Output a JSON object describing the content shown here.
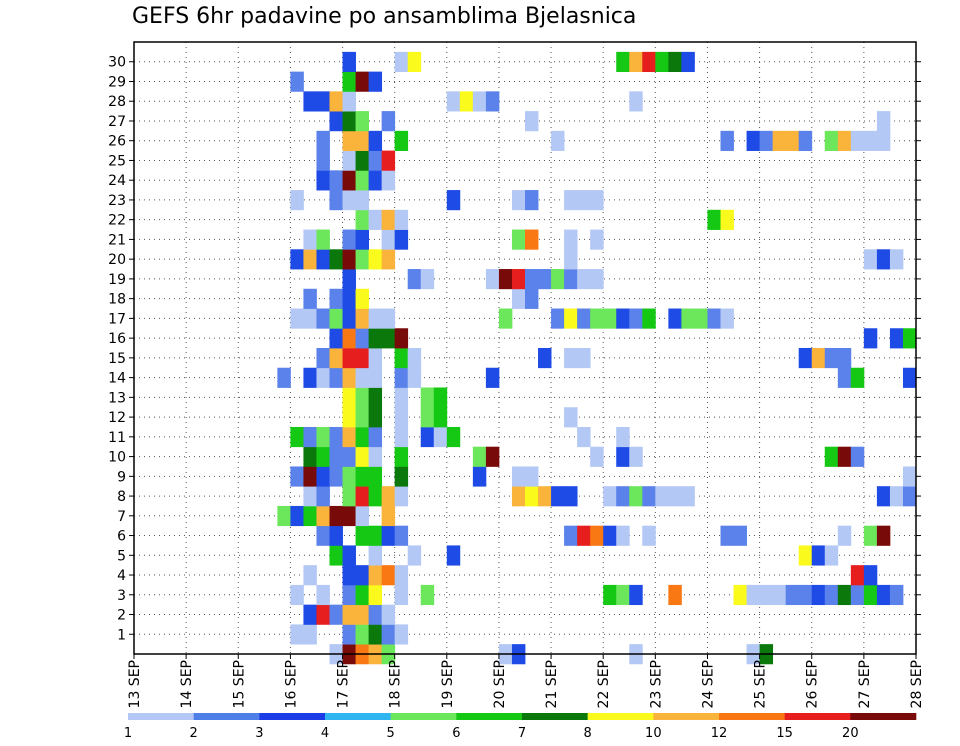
{
  "chart_data": {
    "type": "heatmap",
    "title": "GEFS 6hr padavine po ansamblima Bjelasnica",
    "xlabel": "",
    "ylabel": "",
    "x_ticks": [
      "13 SEP",
      "14 SEP",
      "15 SEP",
      "16 SEP",
      "17 SEP",
      "18 SEP",
      "19 SEP",
      "20 SEP",
      "21 SEP",
      "22 SEP",
      "23 SEP",
      "24 SEP",
      "25 SEP",
      "26 SEP",
      "27 SEP",
      "28 SEP"
    ],
    "y_ticks": [
      "1",
      "2",
      "3",
      "4",
      "5",
      "6",
      "7",
      "8",
      "9",
      "10",
      "11",
      "12",
      "13",
      "14",
      "15",
      "16",
      "17",
      "18",
      "19",
      "20",
      "21",
      "22",
      "23",
      "24",
      "25",
      "26",
      "27",
      "28",
      "29",
      "30"
    ],
    "time_steps_per_day": 4,
    "num_time_steps": 60,
    "members": 30,
    "grid": true,
    "colorbar": {
      "labels": [
        "1",
        "2",
        "3",
        "4",
        "5",
        "6",
        "7",
        "8",
        "10",
        "12",
        "15",
        "20"
      ],
      "colors": [
        "#b4c8f5",
        "#4e7ee8",
        "#1c3ce6",
        "#2fb6f2",
        "#6ce65a",
        "#14c814",
        "#0b780b",
        "#fafa1c",
        "#fab43c",
        "#fa7814",
        "#e61e1e",
        "#780a0a"
      ]
    },
    "colors": {
      "1": "#b4c8f5",
      "2": "#5a82ea",
      "3": "#1e4ae6",
      "5": "#6ce65a",
      "6": "#14c814",
      "7": "#0b780b",
      "8": "#fafa1c",
      "10": "#fab43c",
      "12": "#fa7814",
      "15": "#e61e1e",
      "20": "#780a0a"
    },
    "cells": {
      "30": [
        [
          16,
          3
        ],
        [
          20,
          1
        ],
        [
          21,
          8
        ],
        [
          37,
          6
        ],
        [
          38,
          10
        ],
        [
          39,
          15
        ],
        [
          40,
          6
        ],
        [
          41,
          7
        ],
        [
          42,
          3
        ]
      ],
      "29": [
        [
          12,
          2
        ],
        [
          16,
          6
        ],
        [
          17,
          20
        ],
        [
          18,
          3
        ]
      ],
      "28": [
        [
          13,
          3
        ],
        [
          14,
          3
        ],
        [
          15,
          10
        ],
        [
          16,
          1
        ],
        [
          24,
          1
        ],
        [
          25,
          8
        ],
        [
          26,
          1
        ],
        [
          27,
          2
        ],
        [
          38,
          1
        ]
      ],
      "27": [
        [
          15,
          3
        ],
        [
          16,
          7
        ],
        [
          17,
          5
        ],
        [
          19,
          2
        ],
        [
          30,
          1
        ],
        [
          57,
          1
        ]
      ],
      "26": [
        [
          14,
          2
        ],
        [
          16,
          10
        ],
        [
          17,
          10
        ],
        [
          18,
          3
        ],
        [
          20,
          6
        ],
        [
          32,
          1
        ],
        [
          45,
          2
        ],
        [
          47,
          3
        ],
        [
          48,
          2
        ],
        [
          49,
          10
        ],
        [
          50,
          10
        ],
        [
          51,
          2
        ],
        [
          53,
          5
        ],
        [
          54,
          10
        ],
        [
          55,
          1
        ],
        [
          56,
          1
        ],
        [
          57,
          1
        ]
      ],
      "25": [
        [
          14,
          2
        ],
        [
          16,
          1
        ],
        [
          17,
          7
        ],
        [
          18,
          2
        ],
        [
          19,
          15
        ]
      ],
      "24": [
        [
          14,
          3
        ],
        [
          15,
          2
        ],
        [
          16,
          20
        ],
        [
          17,
          5
        ],
        [
          18,
          3
        ],
        [
          19,
          1
        ]
      ],
      "23": [
        [
          12,
          1
        ],
        [
          15,
          2
        ],
        [
          16,
          1
        ],
        [
          17,
          1
        ],
        [
          24,
          3
        ],
        [
          29,
          1
        ],
        [
          30,
          2
        ],
        [
          33,
          1
        ],
        [
          34,
          1
        ],
        [
          35,
          1
        ]
      ],
      "22": [
        [
          17,
          5
        ],
        [
          18,
          1
        ],
        [
          19,
          10
        ],
        [
          20,
          1
        ],
        [
          44,
          6
        ],
        [
          45,
          8
        ]
      ],
      "21": [
        [
          13,
          1
        ],
        [
          14,
          5
        ],
        [
          16,
          2
        ],
        [
          17,
          3
        ],
        [
          19,
          1
        ],
        [
          20,
          3
        ],
        [
          29,
          5
        ],
        [
          30,
          12
        ],
        [
          33,
          1
        ],
        [
          35,
          1
        ]
      ],
      "20": [
        [
          12,
          3
        ],
        [
          13,
          10
        ],
        [
          14,
          3
        ],
        [
          15,
          7
        ],
        [
          16,
          20
        ],
        [
          17,
          5
        ],
        [
          18,
          8
        ],
        [
          19,
          10
        ],
        [
          33,
          1
        ],
        [
          56,
          1
        ],
        [
          57,
          3
        ],
        [
          58,
          1
        ]
      ],
      "19": [
        [
          16,
          3
        ],
        [
          21,
          2
        ],
        [
          22,
          1
        ],
        [
          27,
          1
        ],
        [
          28,
          20
        ],
        [
          29,
          15
        ],
        [
          30,
          2
        ],
        [
          31,
          2
        ],
        [
          32,
          5
        ],
        [
          33,
          2
        ],
        [
          34,
          1
        ],
        [
          35,
          1
        ]
      ],
      "18": [
        [
          13,
          2
        ],
        [
          15,
          2
        ],
        [
          16,
          3
        ],
        [
          17,
          8
        ],
        [
          29,
          1
        ],
        [
          30,
          2
        ]
      ],
      "17": [
        [
          12,
          1
        ],
        [
          13,
          1
        ],
        [
          14,
          2
        ],
        [
          15,
          5
        ],
        [
          16,
          3
        ],
        [
          17,
          10
        ],
        [
          18,
          1
        ],
        [
          19,
          1
        ],
        [
          28,
          5
        ],
        [
          32,
          2
        ],
        [
          33,
          8
        ],
        [
          34,
          2
        ],
        [
          35,
          5
        ],
        [
          36,
          5
        ],
        [
          37,
          3
        ],
        [
          38,
          2
        ],
        [
          39,
          6
        ],
        [
          41,
          3
        ],
        [
          42,
          5
        ],
        [
          43,
          5
        ],
        [
          44,
          2
        ],
        [
          45,
          1
        ]
      ],
      "16": [
        [
          15,
          3
        ],
        [
          16,
          12
        ],
        [
          17,
          2
        ],
        [
          18,
          7
        ],
        [
          19,
          7
        ],
        [
          20,
          20
        ],
        [
          56,
          3
        ],
        [
          58,
          3
        ],
        [
          59,
          6
        ]
      ],
      "15": [
        [
          14,
          2
        ],
        [
          15,
          10
        ],
        [
          16,
          15
        ],
        [
          17,
          15
        ],
        [
          18,
          1
        ],
        [
          20,
          6
        ],
        [
          21,
          1
        ],
        [
          31,
          3
        ],
        [
          33,
          1
        ],
        [
          34,
          1
        ],
        [
          51,
          3
        ],
        [
          52,
          10
        ],
        [
          53,
          2
        ],
        [
          54,
          2
        ]
      ],
      "14": [
        [
          11,
          2
        ],
        [
          13,
          3
        ],
        [
          14,
          1
        ],
        [
          15,
          2
        ],
        [
          16,
          10
        ],
        [
          17,
          1
        ],
        [
          18,
          1
        ],
        [
          20,
          2
        ],
        [
          21,
          1
        ],
        [
          27,
          3
        ],
        [
          54,
          2
        ],
        [
          55,
          6
        ],
        [
          59,
          3
        ]
      ],
      "13": [
        [
          16,
          8
        ],
        [
          17,
          5
        ],
        [
          18,
          7
        ],
        [
          20,
          1
        ],
        [
          22,
          5
        ],
        [
          23,
          6
        ]
      ],
      "12": [
        [
          16,
          8
        ],
        [
          17,
          5
        ],
        [
          18,
          7
        ],
        [
          20,
          1
        ],
        [
          22,
          5
        ],
        [
          23,
          6
        ],
        [
          33,
          1
        ]
      ],
      "11": [
        [
          12,
          6
        ],
        [
          13,
          2
        ],
        [
          14,
          5
        ],
        [
          15,
          2
        ],
        [
          16,
          10
        ],
        [
          17,
          6
        ],
        [
          18,
          2
        ],
        [
          20,
          1
        ],
        [
          22,
          3
        ],
        [
          23,
          1
        ],
        [
          24,
          6
        ],
        [
          34,
          1
        ],
        [
          37,
          1
        ]
      ],
      "10": [
        [
          13,
          7
        ],
        [
          14,
          6
        ],
        [
          15,
          2
        ],
        [
          16,
          2
        ],
        [
          17,
          8
        ],
        [
          18,
          1
        ],
        [
          20,
          6
        ],
        [
          26,
          5
        ],
        [
          27,
          20
        ],
        [
          35,
          1
        ],
        [
          37,
          3
        ],
        [
          38,
          1
        ],
        [
          53,
          6
        ],
        [
          54,
          20
        ],
        [
          55,
          2
        ]
      ],
      "9": [
        [
          12,
          2
        ],
        [
          13,
          20
        ],
        [
          14,
          3
        ],
        [
          15,
          2
        ],
        [
          16,
          5
        ],
        [
          17,
          6
        ],
        [
          18,
          6
        ],
        [
          20,
          7
        ],
        [
          26,
          3
        ],
        [
          29,
          1
        ],
        [
          30,
          1
        ],
        [
          59,
          1
        ]
      ],
      "8": [
        [
          13,
          1
        ],
        [
          14,
          2
        ],
        [
          16,
          5
        ],
        [
          17,
          15
        ],
        [
          18,
          6
        ],
        [
          19,
          10
        ],
        [
          20,
          1
        ],
        [
          29,
          10
        ],
        [
          30,
          8
        ],
        [
          31,
          10
        ],
        [
          32,
          3
        ],
        [
          33,
          3
        ],
        [
          36,
          1
        ],
        [
          37,
          2
        ],
        [
          38,
          5
        ],
        [
          39,
          2
        ],
        [
          40,
          1
        ],
        [
          41,
          1
        ],
        [
          42,
          1
        ],
        [
          57,
          3
        ],
        [
          58,
          1
        ],
        [
          59,
          2
        ]
      ],
      "7": [
        [
          11,
          5
        ],
        [
          12,
          3
        ],
        [
          13,
          6
        ],
        [
          14,
          10
        ],
        [
          15,
          20
        ],
        [
          16,
          20
        ],
        [
          17,
          1
        ],
        [
          19,
          10
        ]
      ],
      "6": [
        [
          14,
          2
        ],
        [
          15,
          3
        ],
        [
          17,
          6
        ],
        [
          18,
          6
        ],
        [
          19,
          3
        ],
        [
          20,
          2
        ],
        [
          33,
          2
        ],
        [
          34,
          15
        ],
        [
          35,
          12
        ],
        [
          36,
          3
        ],
        [
          37,
          1
        ],
        [
          39,
          1
        ],
        [
          45,
          2
        ],
        [
          46,
          2
        ],
        [
          54,
          1
        ],
        [
          56,
          5
        ],
        [
          57,
          20
        ]
      ],
      "5": [
        [
          15,
          6
        ],
        [
          16,
          3
        ],
        [
          18,
          1
        ],
        [
          21,
          1
        ],
        [
          24,
          3
        ],
        [
          51,
          8
        ],
        [
          52,
          3
        ],
        [
          53,
          1
        ]
      ],
      "4": [
        [
          13,
          1
        ],
        [
          16,
          3
        ],
        [
          17,
          3
        ],
        [
          18,
          10
        ],
        [
          19,
          12
        ],
        [
          20,
          1
        ],
        [
          55,
          15
        ],
        [
          56,
          3
        ]
      ],
      "3": [
        [
          12,
          1
        ],
        [
          14,
          1
        ],
        [
          16,
          2
        ],
        [
          17,
          6
        ],
        [
          18,
          8
        ],
        [
          20,
          1
        ],
        [
          22,
          5
        ],
        [
          36,
          6
        ],
        [
          37,
          5
        ],
        [
          38,
          3
        ],
        [
          41,
          12
        ],
        [
          46,
          8
        ],
        [
          47,
          1
        ],
        [
          48,
          1
        ],
        [
          49,
          1
        ],
        [
          50,
          2
        ],
        [
          51,
          2
        ],
        [
          52,
          3
        ],
        [
          53,
          2
        ],
        [
          54,
          7
        ],
        [
          55,
          2
        ],
        [
          56,
          6
        ],
        [
          57,
          3
        ],
        [
          58,
          2
        ]
      ],
      "2": [
        [
          13,
          3
        ],
        [
          14,
          15
        ],
        [
          15,
          2
        ],
        [
          16,
          10
        ],
        [
          17,
          10
        ],
        [
          18,
          2
        ],
        [
          19,
          1
        ]
      ],
      "1": [
        [
          12,
          1
        ],
        [
          13,
          1
        ],
        [
          16,
          2
        ],
        [
          17,
          5
        ],
        [
          18,
          7
        ],
        [
          19,
          2
        ],
        [
          20,
          1
        ]
      ],
      "0": [
        [
          15,
          1
        ],
        [
          16,
          20
        ],
        [
          17,
          12
        ],
        [
          18,
          10
        ],
        [
          19,
          5
        ],
        [
          28,
          1
        ],
        [
          29,
          3
        ],
        [
          38,
          1
        ],
        [
          47,
          1
        ],
        [
          48,
          7
        ]
      ]
    }
  }
}
